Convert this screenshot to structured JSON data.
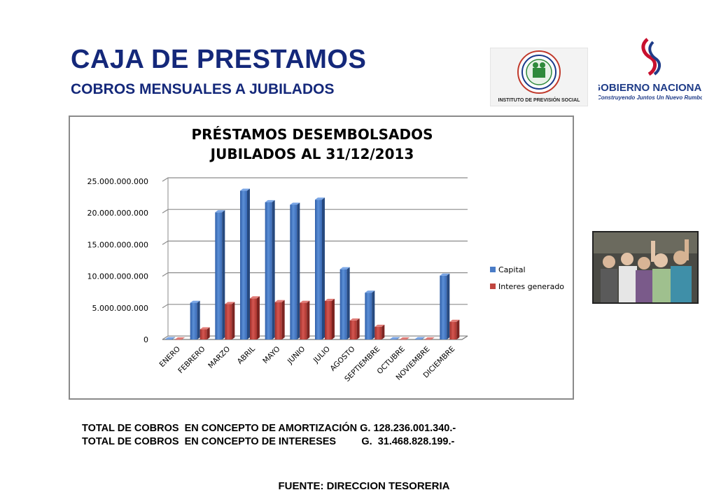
{
  "header": {
    "title": "CAJA DE PRESTAMOS",
    "subtitle": "COBROS MENSUALES A JUBILADOS"
  },
  "logos": {
    "ips_text": "INSTITUTO DE PREVISIÓN SOCIAL",
    "gob_line1": "GOBIERNO NACIONAL",
    "gob_line2": "Construyendo Juntos Un Nuevo Rumbo"
  },
  "chart_data": {
    "type": "bar",
    "title_line1": "PRÉSTAMOS DESEMBOLSADOS",
    "title_line2": "JUBILADOS AL 31/12/2013",
    "categories": [
      "ENERO",
      "FEBRERO",
      "MARZO",
      "ABRIL",
      "MAYO",
      "JUNIO",
      "JULIO",
      "AGOSTO",
      "SEPTIEMBRE",
      "OCTUBRE",
      "NOVIEMBRE",
      "DICIEMBRE"
    ],
    "series": [
      {
        "name": "Capital",
        "color": "#4a7cc7",
        "values": [
          50000000,
          5800000000,
          20100000000,
          23500000000,
          21700000000,
          21300000000,
          22100000000,
          11100000000,
          7400000000,
          50000000,
          50000000,
          10100000000
        ]
      },
      {
        "name": "Interes generado",
        "color": "#c0453f",
        "values": [
          20000000,
          1600000000,
          5600000000,
          6500000000,
          5900000000,
          5800000000,
          6100000000,
          3000000000,
          2000000000,
          20000000,
          20000000,
          2800000000
        ]
      }
    ],
    "yticks": [
      "0",
      "5.000.000.000",
      "10.000.000.000",
      "15.000.000.000",
      "20.000.000.000",
      "25.000.000.000"
    ],
    "ylim": [
      0,
      25000000000
    ],
    "grid": true,
    "legend": "right"
  },
  "totals": {
    "amortizacion": "TOTAL DE COBROS  EN CONCEPTO DE AMORTIZACIÓN G. 128.236.001.340.-",
    "intereses": "TOTAL DE COBROS  EN CONCEPTO DE INTERESES         G.  31.468.828.199.-"
  },
  "footer": {
    "source": "FUENTE: DIRECCION TESORERIA"
  }
}
